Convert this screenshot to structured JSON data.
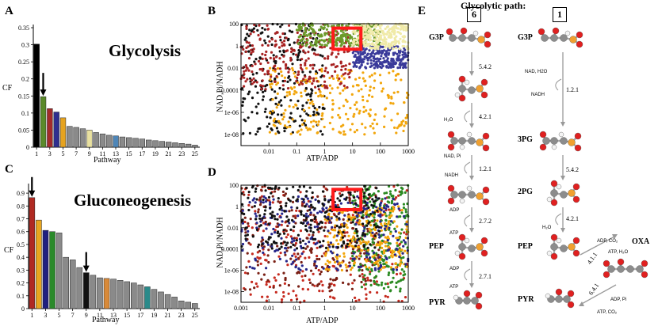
{
  "panels": {
    "a": {
      "letter": "A",
      "title": "Glycolysis",
      "ylabel": "CF",
      "xlabel": "Pathway",
      "yticks": [
        "0",
        "0.05",
        "0.1",
        "0.15",
        "0.2",
        "0.25",
        "0.3",
        "0.35"
      ],
      "xticks": [
        "1",
        "3",
        "5",
        "7",
        "9",
        "11",
        "13",
        "15",
        "17",
        "19",
        "21",
        "23",
        "25"
      ]
    },
    "b": {
      "letter": "B",
      "ylabel": "NAD,Pi/NADH",
      "xlabel": "ATP/ADP",
      "yticks": [
        "100",
        "1",
        "0.01",
        "0.0001",
        "1e-06",
        "1e-08"
      ],
      "xticks": [
        "0.01",
        "0.1",
        "1",
        "10",
        "100",
        "1000"
      ]
    },
    "c": {
      "letter": "C",
      "title": "Gluconeogenesis",
      "ylabel": "CF",
      "xlabel": "Pathway",
      "yticks": [
        "0",
        "0.1",
        "0.2",
        "0.3",
        "0.4",
        "0.5",
        "0.6",
        "0.7",
        "0.8",
        "0.9"
      ],
      "xticks": [
        "1",
        "3",
        "5",
        "7",
        "9",
        "11",
        "13",
        "15",
        "17",
        "19",
        "21",
        "23",
        "25"
      ]
    },
    "d": {
      "letter": "D",
      "ylabel": "NAD,Pi/NADH",
      "xlabel": "ATP/ADP",
      "yticks": [
        "100",
        "1",
        "0.01",
        "0.0001",
        "1e-06",
        "1e-08"
      ],
      "xticks": [
        "0.001",
        "0.01",
        "0.1",
        "1",
        "10",
        "100",
        "1000"
      ]
    },
    "e": {
      "letter": "E",
      "title": "Glycolytic path:",
      "path_a": "6",
      "path_b": "1",
      "left_metabolites": [
        "G3P",
        "PEP",
        "PYR"
      ],
      "right_metabolites": [
        "G3P",
        "3PG",
        "2PG",
        "PEP",
        "PYR",
        "OXA"
      ],
      "left_ec": [
        "5.4.2",
        "4.2.1",
        "1.2.1",
        "2.7.2",
        "2.7.1"
      ],
      "right_ec": [
        "1.2.1",
        "5.4.2",
        "4.2.1",
        "4.1.1",
        "6.4.1"
      ],
      "left_cofactors": [
        "H₂O",
        "NAD, Pi",
        "NADH",
        "ADP",
        "ATP",
        "ADP",
        "ATP"
      ],
      "right_cofactors": [
        "NAD, H2O",
        "NADH",
        "H₂O",
        "ADP, CO₂",
        "ATP, H₂O",
        "ADP, Pi",
        "ATP, CO₂"
      ]
    }
  },
  "chart_data": [
    {
      "type": "bar",
      "title": "Glycolysis",
      "xlabel": "Pathway",
      "ylabel": "CF",
      "ylim": [
        0,
        0.35
      ],
      "categories": [
        "1",
        "2",
        "3",
        "4",
        "5",
        "6",
        "7",
        "8",
        "9",
        "10",
        "11",
        "12",
        "13",
        "14",
        "15",
        "16",
        "17",
        "18",
        "19",
        "20",
        "21",
        "22",
        "23",
        "24",
        "25"
      ],
      "values": [
        0.302,
        0.148,
        0.113,
        0.103,
        0.086,
        0.061,
        0.058,
        0.054,
        0.05,
        0.043,
        0.039,
        0.035,
        0.033,
        0.03,
        0.028,
        0.026,
        0.024,
        0.021,
        0.019,
        0.017,
        0.015,
        0.013,
        0.011,
        0.009,
        0.006
      ],
      "colors": [
        "#000000",
        "#5b8a2a",
        "#a32a2a",
        "#2f2f8f",
        "#e6a31f",
        "#8a8a8a",
        "#8a8a8a",
        "#8a8a8a",
        "#e8e0a0",
        "#8a8a8a",
        "#8a8a8a",
        "#8a8a8a",
        "#4e86b8",
        "#8a8a8a",
        "#8a8a8a",
        "#8a8a8a",
        "#8a8a8a",
        "#8a8a8a",
        "#8a8a8a",
        "#8a8a8a",
        "#8a8a8a",
        "#8a8a8a",
        "#8a8a8a",
        "#8a8a8a",
        "#8a8a8a"
      ],
      "arrow_at": "2"
    },
    {
      "type": "bar",
      "title": "Gluconeogenesis",
      "xlabel": "Pathway",
      "ylabel": "CF",
      "ylim": [
        0,
        0.95
      ],
      "categories": [
        "1",
        "2",
        "3",
        "4",
        "5",
        "6",
        "7",
        "8",
        "9",
        "10",
        "11",
        "12",
        "13",
        "14",
        "15",
        "16",
        "17",
        "18",
        "19",
        "20",
        "21",
        "22",
        "23",
        "24",
        "25"
      ],
      "values": [
        0.865,
        0.69,
        0.61,
        0.6,
        0.59,
        0.4,
        0.38,
        0.32,
        0.28,
        0.26,
        0.24,
        0.235,
        0.23,
        0.22,
        0.21,
        0.2,
        0.185,
        0.17,
        0.15,
        0.13,
        0.11,
        0.09,
        0.06,
        0.05,
        0.04
      ],
      "colors": [
        "#b02a22",
        "#e8a61f",
        "#20207f",
        "#2a8a2a",
        "#8a8a8a",
        "#8a8a8a",
        "#8a8a8a",
        "#8a8a8a",
        "#111111",
        "#8a8a8a",
        "#8a8a8a",
        "#d88a3a",
        "#8a8a8a",
        "#8a8a8a",
        "#8a8a8a",
        "#8a8a8a",
        "#8a8a8a",
        "#2a8a8a",
        "#8a8a8a",
        "#8a8a8a",
        "#8a8a8a",
        "#8a8a8a",
        "#8a8a8a",
        "#8a8a8a",
        "#8a8a8a"
      ],
      "arrow_at": [
        "1",
        "9"
      ]
    },
    {
      "type": "scatter",
      "xlabel": "ATP/ADP",
      "ylabel": "NAD,Pi/NADH",
      "xscale": "log",
      "yscale": "log",
      "xlim": [
        0.001,
        1000
      ],
      "ylim": [
        1e-09,
        100
      ],
      "series": [
        {
          "name": "black",
          "color": "#111111",
          "x_range": [
            0.001,
            1
          ],
          "y_range": [
            1e-08,
            100
          ]
        },
        {
          "name": "orange",
          "color": "#f2a60c",
          "x_range": [
            0.01,
            1000
          ],
          "y_range": [
            1e-08,
            0.01
          ]
        },
        {
          "name": "darkred",
          "color": "#a82222",
          "x_range": [
            0.001,
            10
          ],
          "y_range": [
            0.0001,
            100
          ]
        },
        {
          "name": "navy",
          "color": "#3a3a9a",
          "x_range": [
            10,
            1000
          ],
          "y_range": [
            0.01,
            1
          ]
        },
        {
          "name": "olive",
          "color": "#6b9b2a",
          "x_range": [
            0.1,
            100
          ],
          "y_range": [
            1,
            100
          ]
        },
        {
          "name": "pale yellow",
          "color": "#f0eaa8",
          "x_range": [
            10,
            1000
          ],
          "y_range": [
            0.5,
            100
          ]
        }
      ],
      "highlight_box": {
        "x": [
          2,
          20
        ],
        "y": [
          0.5,
          40
        ]
      }
    },
    {
      "type": "scatter",
      "xlabel": "ATP/ADP",
      "ylabel": "NAD,Pi/NADH",
      "xscale": "log",
      "yscale": "log",
      "xlim": [
        0.001,
        1000
      ],
      "ylim": [
        1e-09,
        100
      ],
      "series": [
        {
          "name": "red",
          "color": "#c62a1f",
          "x_range": [
            0.001,
            1000
          ],
          "y_range": [
            1e-09,
            100
          ]
        },
        {
          "name": "brown",
          "color": "#7a1f14",
          "x_range": [
            0.001,
            100
          ],
          "y_range": [
            1e-08,
            100
          ]
        },
        {
          "name": "green",
          "color": "#2b8a22",
          "x_range": [
            10,
            1000
          ],
          "y_range": [
            1e-08,
            100
          ]
        },
        {
          "name": "orange",
          "color": "#f2a60c",
          "x_range": [
            1,
            1000
          ],
          "y_range": [
            1e-06,
            1
          ]
        },
        {
          "name": "navy",
          "color": "#26268a",
          "x_range": [
            0.001,
            1000
          ],
          "y_range": [
            1e-06,
            10
          ]
        },
        {
          "name": "black",
          "color": "#111111",
          "x_range": [
            0.001,
            100
          ],
          "y_range": [
            0.0001,
            100
          ]
        }
      ],
      "highlight_box": {
        "x": [
          2,
          20
        ],
        "y": [
          0.5,
          40
        ]
      }
    }
  ]
}
